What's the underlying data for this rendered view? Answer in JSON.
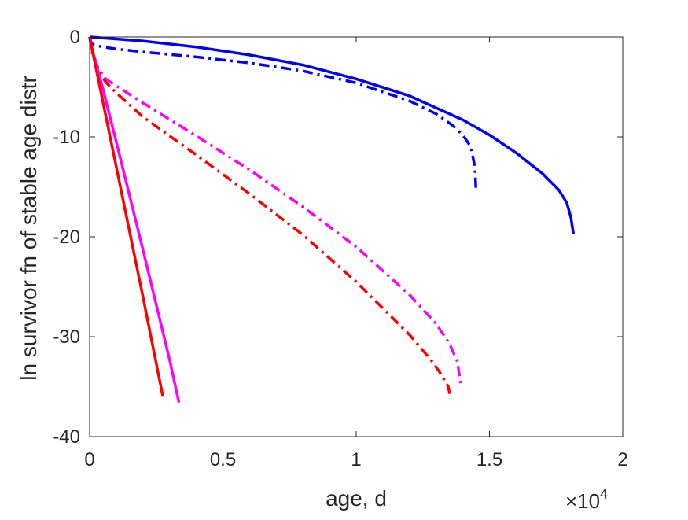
{
  "chart_data": {
    "type": "line",
    "title": "",
    "xlabel": "age, d",
    "ylabel": "ln survivor fn of stable age distr",
    "x_exponent_label": "×10",
    "x_exponent_power": "4",
    "xlim": [
      0,
      20000
    ],
    "ylim": [
      -40,
      0
    ],
    "xticks": [
      0,
      5000,
      10000,
      15000,
      20000
    ],
    "xtick_labels": [
      "0",
      "0.5",
      "1",
      "1.5",
      "2"
    ],
    "yticks": [
      0,
      -10,
      -20,
      -30,
      -40
    ],
    "ytick_labels": [
      "0",
      "-10",
      "-20",
      "-30",
      "-40"
    ],
    "grid": false,
    "legend": "none",
    "series": [
      {
        "color": "#0000ff",
        "style": "solid",
        "x": [
          0,
          2000,
          4000,
          6000,
          8000,
          10000,
          12000,
          14000,
          15000,
          16000,
          17000,
          17600,
          17900,
          18050,
          18150
        ],
        "y": [
          0,
          -0.4,
          -1.0,
          -1.8,
          -2.8,
          -4.2,
          -5.9,
          -8.3,
          -9.8,
          -11.6,
          -13.7,
          -15.3,
          -16.6,
          -18.0,
          -19.7
        ]
      },
      {
        "color": "#0000ff",
        "style": "dashdot",
        "x": [
          0,
          60,
          150,
          500,
          1000,
          2000,
          4000,
          6000,
          8000,
          10000,
          12000,
          13000,
          13600,
          14000,
          14300,
          14450,
          14500
        ],
        "y": [
          0,
          -0.6,
          -0.8,
          -1.0,
          -1.2,
          -1.5,
          -2.0,
          -2.6,
          -3.4,
          -4.6,
          -6.4,
          -7.7,
          -8.8,
          -9.8,
          -11.0,
          -13.0,
          -15.5
        ]
      },
      {
        "color": "#ff00ff",
        "style": "dashdot",
        "x": [
          0,
          100,
          300,
          600,
          1000,
          2000,
          4000,
          6000,
          8000,
          10000,
          12000,
          13000,
          13500,
          13800,
          13920
        ],
        "y": [
          0,
          -1.5,
          -3.0,
          -4.2,
          -4.9,
          -6.6,
          -9.9,
          -13.3,
          -17.0,
          -21.0,
          -25.8,
          -28.7,
          -30.7,
          -32.5,
          -34.8
        ]
      },
      {
        "color": "#ff0000",
        "style": "dashdot",
        "x": [
          0,
          100,
          300,
          600,
          1000,
          2000,
          4000,
          6000,
          8000,
          10000,
          12000,
          12800,
          13200,
          13450,
          13550
        ],
        "y": [
          0,
          -1.6,
          -3.2,
          -4.5,
          -5.6,
          -8.0,
          -11.8,
          -15.7,
          -19.8,
          -24.5,
          -29.8,
          -32.3,
          -33.8,
          -35.0,
          -36.2
        ]
      },
      {
        "color": "#ff00ff",
        "style": "solid",
        "x": [
          0,
          100,
          500,
          1000,
          2000,
          3000,
          3350
        ],
        "y": [
          0,
          -1.3,
          -5.2,
          -10.5,
          -21.3,
          -32.3,
          -36.6
        ]
      },
      {
        "color": "#ff0000",
        "style": "solid",
        "x": [
          0,
          100,
          500,
          1000,
          2000,
          2750
        ],
        "y": [
          0,
          -1.3,
          -6.5,
          -13.0,
          -26.0,
          -36.0
        ]
      }
    ]
  }
}
